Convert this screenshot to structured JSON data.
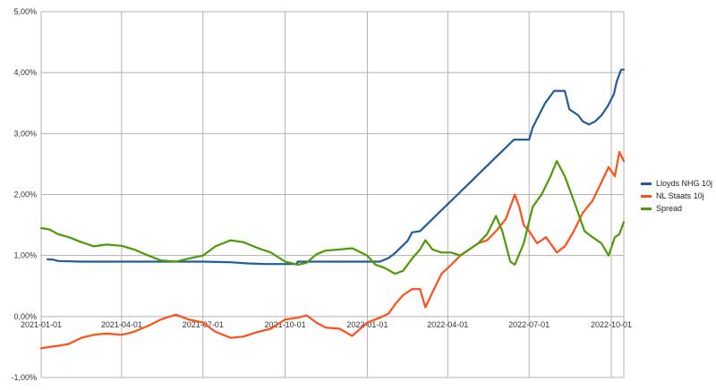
{
  "chart_data": {
    "type": "line",
    "xlabel": "",
    "ylabel": "",
    "x_ticks": [
      "2021-01-01",
      "2021-04-01",
      "2021-07-01",
      "2021-10-01",
      "2022-01-01",
      "2022-04-01",
      "2022-07-01",
      "2022-10-01"
    ],
    "y_ticks": [
      "-1,00%",
      "0,00%",
      "1,00%",
      "2,00%",
      "3,00%",
      "4,00%",
      "5,00%"
    ],
    "xlim": [
      "2021-01-01",
      "2022-10-15"
    ],
    "ylim": [
      -1.0,
      5.0
    ],
    "grid": true,
    "legend_position": "right",
    "series": [
      {
        "name": "Lloyds NHG 10j",
        "color": "#1f5c99",
        "points": [
          [
            "2021-01-08",
            0.94
          ],
          [
            "2021-01-15",
            0.93
          ],
          [
            "2021-01-20",
            0.91
          ],
          [
            "2021-02-15",
            0.9
          ],
          [
            "2021-03-01",
            0.9
          ],
          [
            "2021-04-01",
            0.9
          ],
          [
            "2021-05-01",
            0.9
          ],
          [
            "2021-06-01",
            0.9
          ],
          [
            "2021-07-01",
            0.9
          ],
          [
            "2021-08-01",
            0.89
          ],
          [
            "2021-08-20",
            0.87
          ],
          [
            "2021-09-10",
            0.86
          ],
          [
            "2021-10-01",
            0.86
          ],
          [
            "2021-10-14",
            0.86
          ],
          [
            "2021-10-15",
            0.9
          ],
          [
            "2021-11-15",
            0.9
          ],
          [
            "2021-12-15",
            0.9
          ],
          [
            "2022-01-01",
            0.9
          ],
          [
            "2022-01-15",
            0.9
          ],
          [
            "2022-01-25",
            0.96
          ],
          [
            "2022-02-01",
            1.04
          ],
          [
            "2022-02-08",
            1.14
          ],
          [
            "2022-02-15",
            1.24
          ],
          [
            "2022-02-20",
            1.38
          ],
          [
            "2022-03-01",
            1.4
          ],
          [
            "2022-03-08",
            1.5
          ],
          [
            "2022-03-15",
            1.6
          ],
          [
            "2022-03-22",
            1.7
          ],
          [
            "2022-03-29",
            1.8
          ],
          [
            "2022-04-05",
            1.9
          ],
          [
            "2022-04-12",
            2.0
          ],
          [
            "2022-04-19",
            2.1
          ],
          [
            "2022-04-26",
            2.2
          ],
          [
            "2022-05-03",
            2.3
          ],
          [
            "2022-05-10",
            2.4
          ],
          [
            "2022-05-17",
            2.5
          ],
          [
            "2022-05-24",
            2.6
          ],
          [
            "2022-05-31",
            2.7
          ],
          [
            "2022-06-07",
            2.8
          ],
          [
            "2022-06-14",
            2.9
          ],
          [
            "2022-06-25",
            2.9
          ],
          [
            "2022-07-01",
            2.9
          ],
          [
            "2022-07-05",
            3.1
          ],
          [
            "2022-07-12",
            3.3
          ],
          [
            "2022-07-19",
            3.5
          ],
          [
            "2022-07-29",
            3.7
          ],
          [
            "2022-08-10",
            3.7
          ],
          [
            "2022-08-15",
            3.4
          ],
          [
            "2022-08-25",
            3.3
          ],
          [
            "2022-08-30",
            3.2
          ],
          [
            "2022-09-06",
            3.15
          ],
          [
            "2022-09-13",
            3.2
          ],
          [
            "2022-09-20",
            3.3
          ],
          [
            "2022-09-27",
            3.45
          ],
          [
            "2022-10-04",
            3.65
          ],
          [
            "2022-10-07",
            3.85
          ],
          [
            "2022-10-12",
            4.05
          ],
          [
            "2022-10-15",
            4.05
          ]
        ]
      },
      {
        "name": "NL Staats 10j",
        "color": "#ff4f1a",
        "points": [
          [
            "2021-01-01",
            -0.52
          ],
          [
            "2021-01-10",
            -0.5
          ],
          [
            "2021-01-20",
            -0.48
          ],
          [
            "2021-02-01",
            -0.45
          ],
          [
            "2021-02-15",
            -0.35
          ],
          [
            "2021-03-01",
            -0.3
          ],
          [
            "2021-03-15",
            -0.28
          ],
          [
            "2021-04-01",
            -0.3
          ],
          [
            "2021-04-15",
            -0.25
          ],
          [
            "2021-05-01",
            -0.15
          ],
          [
            "2021-05-15",
            -0.05
          ],
          [
            "2021-05-25",
            0.0
          ],
          [
            "2021-06-01",
            0.03
          ],
          [
            "2021-06-15",
            -0.05
          ],
          [
            "2021-07-01",
            -0.1
          ],
          [
            "2021-07-15",
            -0.25
          ],
          [
            "2021-08-01",
            -0.35
          ],
          [
            "2021-08-15",
            -0.33
          ],
          [
            "2021-09-01",
            -0.25
          ],
          [
            "2021-09-15",
            -0.2
          ],
          [
            "2021-10-01",
            -0.05
          ],
          [
            "2021-10-15",
            -0.02
          ],
          [
            "2021-10-25",
            0.02
          ],
          [
            "2021-11-05",
            -0.1
          ],
          [
            "2021-11-15",
            -0.18
          ],
          [
            "2021-12-01",
            -0.2
          ],
          [
            "2021-12-15",
            -0.32
          ],
          [
            "2022-01-01",
            -0.1
          ],
          [
            "2022-01-15",
            -0.02
          ],
          [
            "2022-01-25",
            0.05
          ],
          [
            "2022-02-01",
            0.2
          ],
          [
            "2022-02-10",
            0.35
          ],
          [
            "2022-02-20",
            0.45
          ],
          [
            "2022-03-01",
            0.45
          ],
          [
            "2022-03-07",
            0.15
          ],
          [
            "2022-03-15",
            0.4
          ],
          [
            "2022-03-25",
            0.7
          ],
          [
            "2022-04-05",
            0.85
          ],
          [
            "2022-04-15",
            1.0
          ],
          [
            "2022-04-25",
            1.1
          ],
          [
            "2022-05-05",
            1.2
          ],
          [
            "2022-05-15",
            1.25
          ],
          [
            "2022-05-25",
            1.4
          ],
          [
            "2022-06-05",
            1.6
          ],
          [
            "2022-06-15",
            2.0
          ],
          [
            "2022-06-20",
            1.8
          ],
          [
            "2022-06-25",
            1.5
          ],
          [
            "2022-07-01",
            1.4
          ],
          [
            "2022-07-10",
            1.2
          ],
          [
            "2022-07-20",
            1.3
          ],
          [
            "2022-08-01",
            1.05
          ],
          [
            "2022-08-10",
            1.15
          ],
          [
            "2022-08-20",
            1.4
          ],
          [
            "2022-08-30",
            1.7
          ],
          [
            "2022-09-10",
            1.9
          ],
          [
            "2022-09-20",
            2.2
          ],
          [
            "2022-09-28",
            2.45
          ],
          [
            "2022-10-05",
            2.3
          ],
          [
            "2022-10-10",
            2.7
          ],
          [
            "2022-10-15",
            2.55
          ]
        ]
      },
      {
        "name": "Spread",
        "color": "#4e9a06",
        "points": [
          [
            "2021-01-01",
            1.45
          ],
          [
            "2021-01-10",
            1.43
          ],
          [
            "2021-01-20",
            1.35
          ],
          [
            "2021-02-01",
            1.3
          ],
          [
            "2021-02-15",
            1.22
          ],
          [
            "2021-03-01",
            1.15
          ],
          [
            "2021-03-15",
            1.18
          ],
          [
            "2021-04-01",
            1.16
          ],
          [
            "2021-04-15",
            1.1
          ],
          [
            "2021-05-01",
            1.0
          ],
          [
            "2021-05-15",
            0.92
          ],
          [
            "2021-06-01",
            0.9
          ],
          [
            "2021-06-15",
            0.95
          ],
          [
            "2021-07-01",
            1.0
          ],
          [
            "2021-07-15",
            1.15
          ],
          [
            "2021-08-01",
            1.25
          ],
          [
            "2021-08-15",
            1.22
          ],
          [
            "2021-09-01",
            1.12
          ],
          [
            "2021-09-15",
            1.05
          ],
          [
            "2021-10-01",
            0.9
          ],
          [
            "2021-10-15",
            0.85
          ],
          [
            "2021-10-25",
            0.88
          ],
          [
            "2021-11-05",
            1.02
          ],
          [
            "2021-11-15",
            1.08
          ],
          [
            "2021-12-01",
            1.1
          ],
          [
            "2021-12-15",
            1.12
          ],
          [
            "2022-01-01",
            1.0
          ],
          [
            "2022-01-10",
            0.85
          ],
          [
            "2022-01-20",
            0.8
          ],
          [
            "2022-02-01",
            0.7
          ],
          [
            "2022-02-10",
            0.75
          ],
          [
            "2022-02-20",
            0.95
          ],
          [
            "2022-03-01",
            1.1
          ],
          [
            "2022-03-07",
            1.25
          ],
          [
            "2022-03-15",
            1.1
          ],
          [
            "2022-03-25",
            1.05
          ],
          [
            "2022-04-05",
            1.05
          ],
          [
            "2022-04-15",
            1.0
          ],
          [
            "2022-04-25",
            1.1
          ],
          [
            "2022-05-05",
            1.2
          ],
          [
            "2022-05-15",
            1.35
          ],
          [
            "2022-05-25",
            1.65
          ],
          [
            "2022-06-01",
            1.4
          ],
          [
            "2022-06-10",
            0.9
          ],
          [
            "2022-06-15",
            0.85
          ],
          [
            "2022-06-25",
            1.2
          ],
          [
            "2022-07-05",
            1.8
          ],
          [
            "2022-07-15",
            2.0
          ],
          [
            "2022-07-25",
            2.3
          ],
          [
            "2022-08-01",
            2.55
          ],
          [
            "2022-08-10",
            2.3
          ],
          [
            "2022-08-20",
            1.9
          ],
          [
            "2022-09-01",
            1.4
          ],
          [
            "2022-09-10",
            1.3
          ],
          [
            "2022-09-20",
            1.2
          ],
          [
            "2022-09-28",
            1.0
          ],
          [
            "2022-10-05",
            1.3
          ],
          [
            "2022-10-10",
            1.35
          ],
          [
            "2022-10-15",
            1.55
          ]
        ]
      }
    ]
  }
}
